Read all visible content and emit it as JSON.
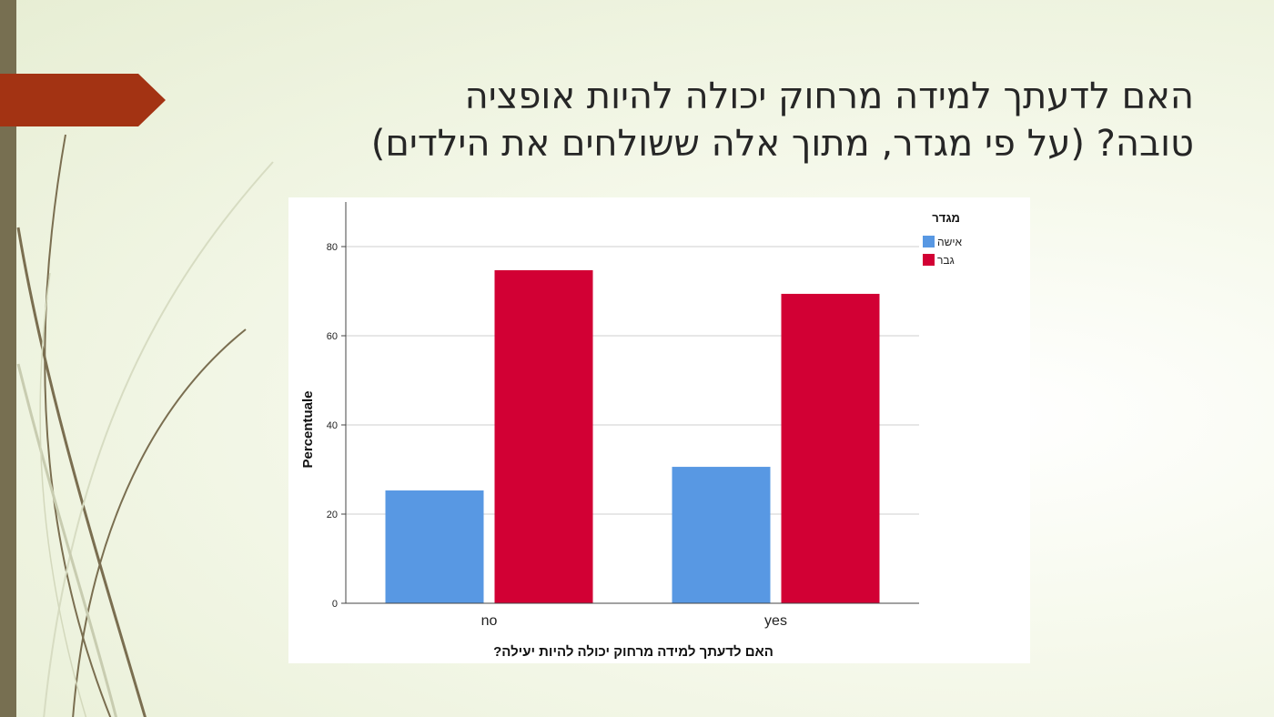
{
  "slide": {
    "title_line1": "האם לדעתך למידה מרחוק יכולה להיות אופציה",
    "title_line2": "טובה? (על פי מגדר, מתוך אלה ששולחים את הילדים)",
    "accent_color": "#a33313",
    "bar_color": "#776f51"
  },
  "chart_data": {
    "type": "bar",
    "categories": [
      "no",
      "yes"
    ],
    "series": [
      {
        "name": "אישה",
        "values": [
          25.3,
          30.6
        ],
        "color": "#5898e3"
      },
      {
        "name": "גבר",
        "values": [
          74.7,
          69.4
        ],
        "color": "#d20034"
      }
    ],
    "xlabel": "האם לדעתך למידה מרחוק יכולה להיות יעילה?",
    "ylabel": "Percentuale",
    "ylim": [
      0,
      90
    ],
    "yticks": [
      0,
      20,
      40,
      60,
      80
    ],
    "grid": true,
    "legend_title": "מגדר",
    "legend_position": "top-right"
  }
}
